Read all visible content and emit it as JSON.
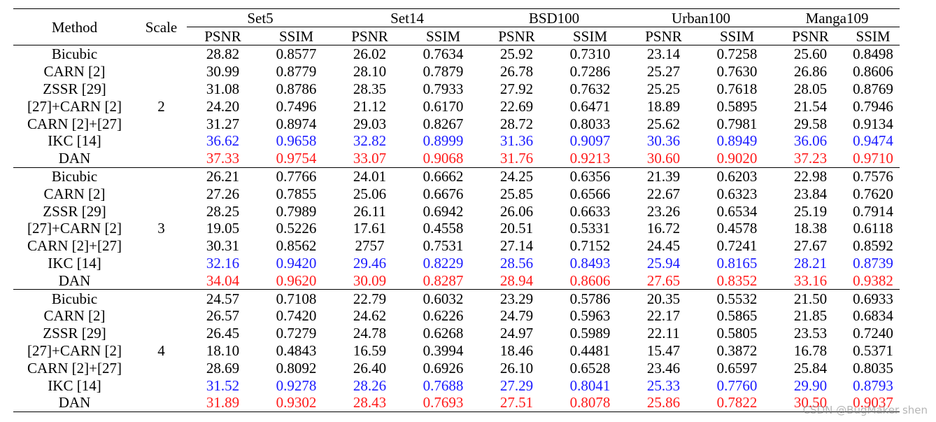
{
  "header": {
    "method": "Method",
    "scale": "Scale",
    "datasets": [
      "Set5",
      "Set14",
      "BSD100",
      "Urban100",
      "Manga109"
    ],
    "metric_psnr": "PSNR",
    "metric_ssim": "SSIM"
  },
  "groups": [
    {
      "scale": "2",
      "rows": [
        {
          "method": "Bicubic",
          "style": "",
          "values": [
            "28.82",
            "0.8577",
            "26.02",
            "0.7634",
            "25.92",
            "0.7310",
            "23.14",
            "0.7258",
            "25.60",
            "0.8498"
          ]
        },
        {
          "method": "CARN [2]",
          "style": "",
          "values": [
            "30.99",
            "0.8779",
            "28.10",
            "0.7879",
            "26.78",
            "0.7286",
            "25.27",
            "0.7630",
            "26.86",
            "0.8606"
          ]
        },
        {
          "method": "ZSSR [29]",
          "style": "",
          "values": [
            "31.08",
            "0.8786",
            "28.35",
            "0.7933",
            "27.92",
            "0.7632",
            "25.25",
            "0.7618",
            "28.05",
            "0.8769"
          ]
        },
        {
          "method": "[27]+CARN [2]",
          "style": "",
          "values": [
            "24.20",
            "0.7496",
            "21.12",
            "0.6170",
            "22.69",
            "0.6471",
            "18.89",
            "0.5895",
            "21.54",
            "0.7946"
          ]
        },
        {
          "method": "CARN [2]+[27]",
          "style": "",
          "values": [
            "31.27",
            "0.8974",
            "29.03",
            "0.8267",
            "28.72",
            "0.8033",
            "25.62",
            "0.7981",
            "29.58",
            "0.9134"
          ]
        },
        {
          "method": "IKC [14]",
          "style": "blue",
          "values": [
            "36.62",
            "0.9658",
            "32.82",
            "0.8999",
            "31.36",
            "0.9097",
            "30.36",
            "0.8949",
            "36.06",
            "0.9474"
          ]
        },
        {
          "method": "DAN",
          "style": "red",
          "values": [
            "37.33",
            "0.9754",
            "33.07",
            "0.9068",
            "31.76",
            "0.9213",
            "30.60",
            "0.9020",
            "37.23",
            "0.9710"
          ]
        }
      ]
    },
    {
      "scale": "3",
      "rows": [
        {
          "method": "Bicubic",
          "style": "",
          "values": [
            "26.21",
            "0.7766",
            "24.01",
            "0.6662",
            "24.25",
            "0.6356",
            "21.39",
            "0.6203",
            "22.98",
            "0.7576"
          ]
        },
        {
          "method": "CARN [2]",
          "style": "",
          "values": [
            "27.26",
            "0.7855",
            "25.06",
            "0.6676",
            "25.85",
            "0.6566",
            "22.67",
            "0.6323",
            "23.84",
            "0.7620"
          ]
        },
        {
          "method": "ZSSR [29]",
          "style": "",
          "values": [
            "28.25",
            "0.7989",
            "26.11",
            "0.6942",
            "26.06",
            "0.6633",
            "23.26",
            "0.6534",
            "25.19",
            "0.7914"
          ]
        },
        {
          "method": "[27]+CARN [2]",
          "style": "",
          "values": [
            "19.05",
            "0.5226",
            "17.61",
            "0.4558",
            "20.51",
            "0.5331",
            "16.72",
            "0.4578",
            "18.38",
            "0.6118"
          ]
        },
        {
          "method": "CARN [2]+[27]",
          "style": "",
          "values": [
            "30.31",
            "0.8562",
            "2757",
            "0.7531",
            "27.14",
            "0.7152",
            "24.45",
            "0.7241",
            "27.67",
            "0.8592"
          ]
        },
        {
          "method": "IKC [14]",
          "style": "blue",
          "values": [
            "32.16",
            "0.9420",
            "29.46",
            "0.8229",
            "28.56",
            "0.8493",
            "25.94",
            "0.8165",
            "28.21",
            "0.8739"
          ]
        },
        {
          "method": "DAN",
          "style": "red",
          "values": [
            "34.04",
            "0.9620",
            "30.09",
            "0.8287",
            "28.94",
            "0.8606",
            "27.65",
            "0.8352",
            "33.16",
            "0.9382"
          ]
        }
      ]
    },
    {
      "scale": "4",
      "rows": [
        {
          "method": "Bicubic",
          "style": "",
          "values": [
            "24.57",
            "0.7108",
            "22.79",
            "0.6032",
            "23.29",
            "0.5786",
            "20.35",
            "0.5532",
            "21.50",
            "0.6933"
          ]
        },
        {
          "method": "CARN [2]",
          "style": "",
          "values": [
            "26.57",
            "0.7420",
            "24.62",
            "0.6226",
            "24.79",
            "0.5963",
            "22.17",
            "0.5865",
            "21.85",
            "0.6834"
          ]
        },
        {
          "method": "ZSSR [29]",
          "style": "",
          "values": [
            "26.45",
            "0.7279",
            "24.78",
            "0.6268",
            "24.97",
            "0.5989",
            "22.11",
            "0.5805",
            "23.53",
            "0.7240"
          ]
        },
        {
          "method": "[27]+CARN [2]",
          "style": "",
          "values": [
            "18.10",
            "0.4843",
            "16.59",
            "0.3994",
            "18.46",
            "0.4481",
            "15.47",
            "0.3872",
            "16.78",
            "0.5371"
          ]
        },
        {
          "method": "CARN [2]+[27]",
          "style": "",
          "values": [
            "28.69",
            "0.8092",
            "26.40",
            "0.6926",
            "26.10",
            "0.6528",
            "23.46",
            "0.6597",
            "25.84",
            "0.8035"
          ]
        },
        {
          "method": "IKC [14]",
          "style": "blue",
          "values": [
            "31.52",
            "0.9278",
            "28.26",
            "0.7688",
            "27.29",
            "0.8041",
            "25.33",
            "0.7760",
            "29.90",
            "0.8793"
          ]
        },
        {
          "method": "DAN",
          "style": "red",
          "values": [
            "31.89",
            "0.9302",
            "28.43",
            "0.7693",
            "27.51",
            "0.8078",
            "25.86",
            "0.7822",
            "30.50",
            "0.9037"
          ]
        }
      ]
    }
  ],
  "watermark": "CSDN @BugMaker shen",
  "colors": {
    "blue": "#1a1aff",
    "red": "#ff1a1a"
  }
}
